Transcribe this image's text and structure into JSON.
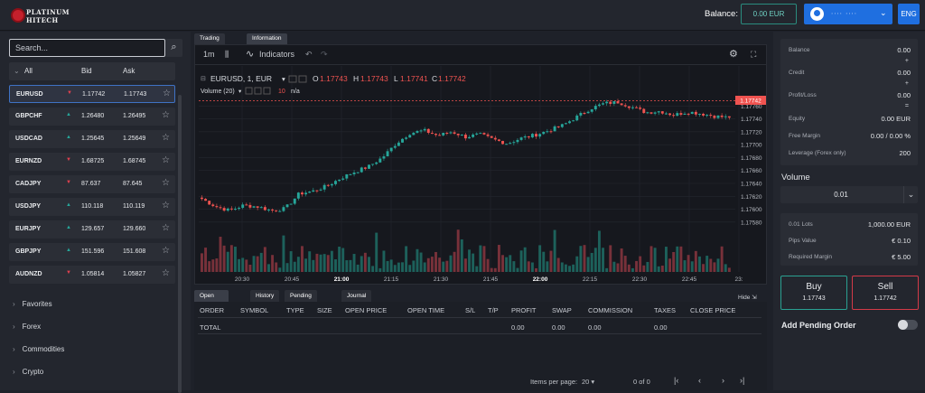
{
  "header": {
    "logo_line1": "PLATINUM",
    "logo_line2": "HITECH",
    "balance_label": "Balance:",
    "balance_value": "0.00 EUR",
    "user_name": "∙∙∙∙ ∙∙∙∙",
    "language": "ENG"
  },
  "sidebar": {
    "search_placeholder": "Search...",
    "list_header": {
      "filter": "All",
      "bid": "Bid",
      "ask": "Ask"
    },
    "instruments": [
      {
        "symbol": "EURUSD",
        "dir": "down",
        "bid": "1.17742",
        "ask": "1.17743",
        "selected": true
      },
      {
        "symbol": "GBPCHF",
        "dir": "up",
        "bid": "1.26480",
        "ask": "1.26495"
      },
      {
        "symbol": "USDCAD",
        "dir": "up",
        "bid": "1.25645",
        "ask": "1.25649"
      },
      {
        "symbol": "EURNZD",
        "dir": "down",
        "bid": "1.68725",
        "ask": "1.68745"
      },
      {
        "symbol": "CADJPY",
        "dir": "down",
        "bid": "87.637",
        "ask": "87.645"
      },
      {
        "symbol": "USDJPY",
        "dir": "up",
        "bid": "110.118",
        "ask": "110.119"
      },
      {
        "symbol": "EURJPY",
        "dir": "up",
        "bid": "129.657",
        "ask": "129.660"
      },
      {
        "symbol": "GBPJPY",
        "dir": "up",
        "bid": "151.596",
        "ask": "151.608"
      },
      {
        "symbol": "AUDNZD",
        "dir": "down",
        "bid": "1.05814",
        "ask": "1.05827"
      }
    ],
    "categories": [
      "Favorites",
      "Forex",
      "Commodities",
      "Crypto"
    ]
  },
  "chart_tabs": [
    "Trading Chart",
    "Information"
  ],
  "chart_toolbar": {
    "interval": "1m",
    "indicators": "Indicators"
  },
  "chart_legend": {
    "symbol": "EURUSD, 1, EUR",
    "o_label": "O",
    "o": "1.17743",
    "h_label": "H",
    "h": "1.17743",
    "l_label": "L",
    "l": "1.17741",
    "c_label": "C",
    "c": "1.17742",
    "volume_label": "Volume (20)",
    "volume_value": "10",
    "volume_extra": "n/a"
  },
  "colors": {
    "up": "#26a69a",
    "down": "#ef5350",
    "accent": "#1f6fe0"
  },
  "chart_data": {
    "type": "candlestick",
    "symbol": "EURUSD",
    "ylim": [
      1.1757,
      1.1778
    ],
    "y_ticks": [
      "1.17760",
      "1.17740",
      "1.17720",
      "1.17700",
      "1.17680",
      "1.17660",
      "1.17640",
      "1.17620",
      "1.17600",
      "1.17580"
    ],
    "x_ticks": [
      "20:30",
      "20:45",
      "21:00",
      "21:15",
      "21:30",
      "21:45",
      "22:00",
      "22:15",
      "22:30",
      "22:45",
      "23:"
    ],
    "last_price": "1.17742",
    "close_path": [
      1.17616,
      1.17604,
      1.17598,
      1.17606,
      1.17604,
      1.17598,
      1.17601,
      1.17624,
      1.17628,
      1.17636,
      1.17648,
      1.17658,
      1.17666,
      1.1768,
      1.17702,
      1.17718,
      1.17722,
      1.17714,
      1.1772,
      1.17712,
      1.17716,
      1.17708,
      1.17702,
      1.1771,
      1.17715,
      1.17722,
      1.1773,
      1.17743,
      1.17756,
      1.17764,
      1.17766,
      1.17758,
      1.1775,
      1.17752,
      1.17746,
      1.17751,
      1.17748,
      1.17744,
      1.17742
    ]
  },
  "bottom_tabs": [
    "Open Positions",
    "History",
    "Pending Orders",
    "Journal"
  ],
  "hide_label": "Hide",
  "orders": {
    "columns": [
      "ORDER",
      "SYMBOL",
      "TYPE",
      "SIZE",
      "OPEN PRICE",
      "OPEN TIME",
      "S/L",
      "T/P",
      "PROFIT",
      "SWAP",
      "COMMISSION",
      "TAXES",
      "CLOSE PRICE"
    ],
    "total_label": "TOTAL",
    "total_profit": "0.00",
    "total_swap": "0.00",
    "total_commission": "0.00",
    "total_taxes": "0.00"
  },
  "pager": {
    "label": "Items per page:",
    "size": "20",
    "range": "0 of 0"
  },
  "account": {
    "rows": [
      {
        "label": "Balance",
        "value": "0.00"
      },
      {
        "label": "Credit",
        "value": "0.00"
      },
      {
        "label": "Profit/Loss",
        "value": "0.00"
      },
      {
        "label": "Equity",
        "value": "0.00 EUR"
      },
      {
        "label": "Free Margin",
        "value": "0.00 / 0.00 %"
      },
      {
        "label": "Leverage (Forex only)",
        "value": "200"
      }
    ],
    "plus": "+",
    "equals": "="
  },
  "volume": {
    "label": "Volume",
    "value": "0.01"
  },
  "lot_info": [
    {
      "label": "0.01 Lots",
      "value": "1,000.00 EUR"
    },
    {
      "label": "Pips Value",
      "value": "€ 0.10"
    },
    {
      "label": "Required Margin",
      "value": "€ 5.00"
    }
  ],
  "trade": {
    "buy_label": "Buy",
    "buy_price": "1.17743",
    "sell_label": "Sell",
    "sell_price": "1.17742"
  },
  "pending": {
    "label": "Add Pending Order"
  }
}
